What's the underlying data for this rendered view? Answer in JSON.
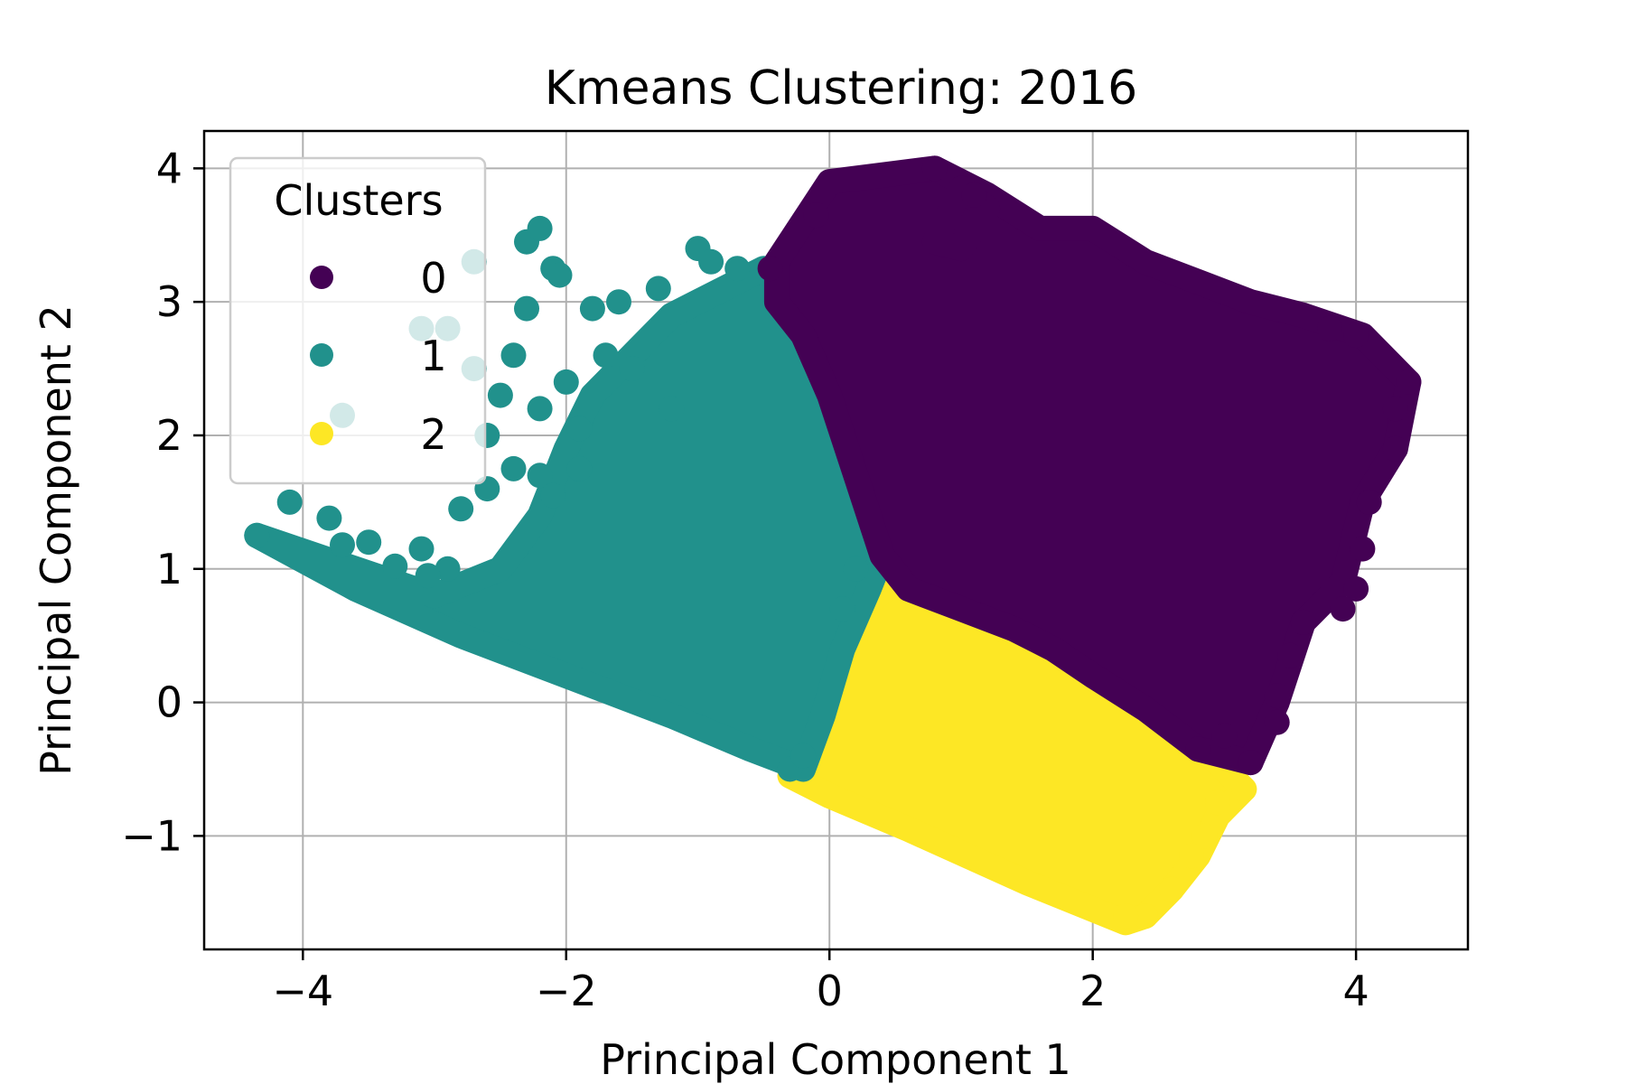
{
  "chart_data": {
    "type": "scatter",
    "title": "Kmeans Clustering: 2016",
    "xlabel": "Principal Component 1",
    "ylabel": "Principal Component 2",
    "xlim": [
      -4.75,
      4.85
    ],
    "ylim": [
      -1.85,
      4.28
    ],
    "xticks": [
      -4,
      -2,
      0,
      2,
      4
    ],
    "yticks": [
      -1,
      0,
      1,
      2,
      3,
      4
    ],
    "grid": true,
    "legend": {
      "title": "Clusters",
      "placement": "top-left",
      "entries": [
        {
          "label": "0",
          "color": "#440154"
        },
        {
          "label": "1",
          "color": "#21918c"
        },
        {
          "label": "2",
          "color": "#fde725"
        }
      ]
    },
    "series": [
      {
        "name": "0",
        "color": "#440154",
        "regions": [
          [
            [
              -0.4,
              3.3
            ],
            [
              -0.2,
              3.6
            ],
            [
              0.0,
              3.9
            ],
            [
              0.4,
              3.95
            ],
            [
              0.8,
              4.0
            ],
            [
              1.2,
              3.8
            ],
            [
              1.6,
              3.55
            ],
            [
              2.0,
              3.55
            ],
            [
              2.4,
              3.3
            ],
            [
              2.8,
              3.15
            ],
            [
              3.2,
              3.0
            ],
            [
              3.6,
              2.9
            ],
            [
              4.05,
              2.75
            ],
            [
              4.4,
              2.4
            ],
            [
              4.3,
              1.9
            ],
            [
              4.05,
              1.5
            ],
            [
              3.9,
              0.9
            ],
            [
              3.6,
              0.6
            ],
            [
              3.4,
              0.0
            ],
            [
              3.2,
              -0.45
            ],
            [
              2.8,
              -0.35
            ],
            [
              2.4,
              -0.05
            ],
            [
              2.0,
              0.2
            ],
            [
              1.7,
              0.4
            ],
            [
              1.4,
              0.55
            ],
            [
              1.0,
              0.7
            ],
            [
              0.6,
              0.85
            ],
            [
              0.4,
              1.1
            ],
            [
              0.2,
              1.7
            ],
            [
              0.0,
              2.3
            ],
            [
              -0.2,
              2.75
            ],
            [
              -0.4,
              3.0
            ]
          ],
          [
            [
              0.8,
              3.45
            ],
            [
              1.0,
              3.85
            ],
            [
              1.2,
              3.7
            ],
            [
              1.0,
              3.4
            ]
          ]
        ],
        "points": [
          [
            -0.45,
            3.25
          ],
          [
            0.8,
            4.0
          ],
          [
            1.1,
            3.8
          ],
          [
            -0.1,
            3.65
          ],
          [
            4.4,
            2.4
          ],
          [
            4.3,
            2.2
          ],
          [
            4.3,
            1.9
          ],
          [
            4.1,
            1.5
          ],
          [
            4.05,
            1.15
          ],
          [
            4.0,
            0.85
          ],
          [
            3.9,
            0.7
          ],
          [
            3.6,
            0.6
          ],
          [
            3.5,
            0.35
          ],
          [
            3.4,
            0.05
          ],
          [
            3.4,
            -0.15
          ],
          [
            3.2,
            -0.45
          ],
          [
            2.8,
            -0.35
          ],
          [
            3.0,
            -0.25
          ],
          [
            4.0,
            2.75
          ],
          [
            3.8,
            2.8
          ]
        ]
      },
      {
        "name": "1",
        "color": "#21918c",
        "regions": [
          [
            [
              -4.35,
              1.25
            ],
            [
              -3.6,
              1.0
            ],
            [
              -3.0,
              0.8
            ],
            [
              -2.5,
              1.0
            ],
            [
              -2.2,
              1.4
            ],
            [
              -2.0,
              1.9
            ],
            [
              -1.8,
              2.3
            ],
            [
              -1.5,
              2.6
            ],
            [
              -1.2,
              2.9
            ],
            [
              -0.8,
              3.1
            ],
            [
              -0.5,
              3.25
            ],
            [
              -0.35,
              3.1
            ],
            [
              -0.2,
              2.75
            ],
            [
              0.0,
              2.3
            ],
            [
              0.2,
              1.7
            ],
            [
              0.4,
              1.1
            ],
            [
              0.3,
              0.85
            ],
            [
              0.1,
              0.4
            ],
            [
              -0.05,
              -0.1
            ],
            [
              -0.2,
              -0.5
            ],
            [
              -0.6,
              -0.35
            ],
            [
              -1.2,
              -0.1
            ],
            [
              -2.0,
              0.2
            ],
            [
              -2.8,
              0.5
            ],
            [
              -3.6,
              0.85
            ]
          ]
        ],
        "points": [
          [
            -4.35,
            1.25
          ],
          [
            -4.1,
            1.5
          ],
          [
            -3.8,
            1.38
          ],
          [
            -3.7,
            1.18
          ],
          [
            -3.5,
            1.2
          ],
          [
            -3.3,
            1.02
          ],
          [
            -3.1,
            1.15
          ],
          [
            -2.9,
            1.0
          ],
          [
            -2.8,
            1.45
          ],
          [
            -2.6,
            1.6
          ],
          [
            -2.4,
            1.75
          ],
          [
            -2.2,
            1.7
          ],
          [
            -2.5,
            2.3
          ],
          [
            -2.4,
            2.6
          ],
          [
            -2.3,
            2.95
          ],
          [
            -2.1,
            3.25
          ],
          [
            -2.0,
            2.4
          ],
          [
            -1.9,
            2.05
          ],
          [
            -1.7,
            2.6
          ],
          [
            -1.8,
            2.95
          ],
          [
            -1.6,
            3.0
          ],
          [
            -1.3,
            3.1
          ],
          [
            -1.0,
            3.4
          ],
          [
            -0.9,
            3.3
          ],
          [
            -0.7,
            3.25
          ],
          [
            -1.5,
            2.5
          ],
          [
            -1.2,
            2.2
          ],
          [
            -2.3,
            3.45
          ],
          [
            -2.2,
            3.55
          ],
          [
            -2.05,
            3.2
          ],
          [
            -2.6,
            2.0
          ],
          [
            -2.2,
            2.2
          ],
          [
            -1.9,
            1.75
          ],
          [
            -2.1,
            1.55
          ],
          [
            -3.7,
            2.15
          ],
          [
            -2.7,
            3.3
          ],
          [
            -2.7,
            2.5
          ],
          [
            -2.9,
            2.8
          ],
          [
            -3.1,
            2.8
          ],
          [
            -3.05,
            0.95
          ],
          [
            -0.3,
            -0.5
          ],
          [
            -0.2,
            -0.4
          ],
          [
            0.2,
            1.0
          ],
          [
            0.1,
            0.7
          ]
        ]
      },
      {
        "name": "2",
        "color": "#fde725",
        "regions": [
          [
            [
              -0.3,
              -0.55
            ],
            [
              0.0,
              0.0
            ],
            [
              0.1,
              0.5
            ],
            [
              0.3,
              0.75
            ],
            [
              0.5,
              0.9
            ],
            [
              0.9,
              0.7
            ],
            [
              1.3,
              0.55
            ],
            [
              1.7,
              0.4
            ],
            [
              2.1,
              0.15
            ],
            [
              2.5,
              -0.1
            ],
            [
              2.9,
              -0.4
            ],
            [
              3.15,
              -0.65
            ],
            [
              2.95,
              -0.85
            ],
            [
              2.8,
              -1.15
            ],
            [
              2.6,
              -1.4
            ],
            [
              2.4,
              -1.6
            ],
            [
              2.25,
              -1.65
            ],
            [
              1.5,
              -1.35
            ],
            [
              0.6,
              -0.95
            ],
            [
              0.0,
              -0.7
            ]
          ]
        ],
        "points": [
          [
            0.5,
            0.9
          ],
          [
            0.3,
            0.8
          ],
          [
            1.0,
            0.65
          ],
          [
            0.2,
            0.5
          ],
          [
            3.15,
            -0.65
          ],
          [
            2.95,
            -0.75
          ],
          [
            2.85,
            -1.0
          ],
          [
            2.75,
            -1.15
          ],
          [
            2.6,
            -1.4
          ],
          [
            2.4,
            -1.6
          ],
          [
            2.25,
            -1.6
          ],
          [
            -0.15,
            -0.45
          ],
          [
            0.0,
            -0.05
          ]
        ]
      }
    ]
  }
}
